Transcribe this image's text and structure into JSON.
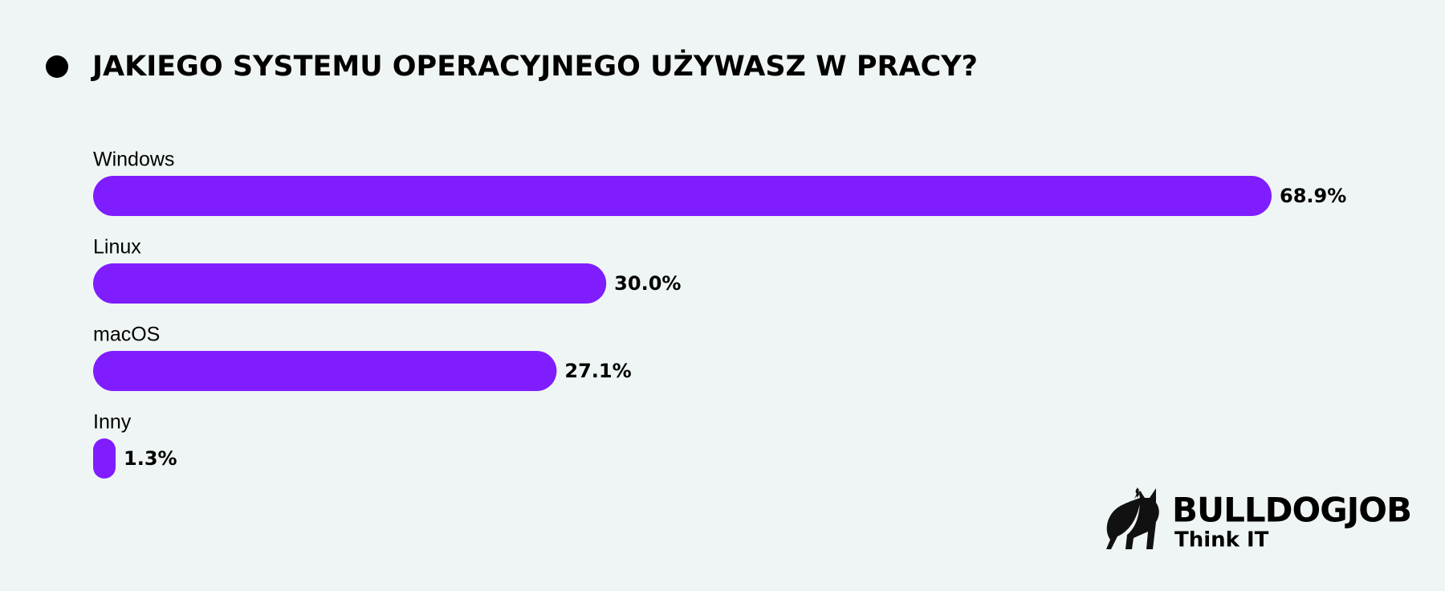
{
  "chart_data": {
    "type": "bar",
    "orientation": "horizontal",
    "title": "JAKIEGO SYSTEMU OPERACYJNEGO UŻYWASZ W PRACY?",
    "categories": [
      "Windows",
      "Linux",
      "macOS",
      "Inny"
    ],
    "values": [
      68.9,
      30.0,
      27.1,
      1.3
    ],
    "value_labels": [
      "68.9%",
      "30.0%",
      "27.1%",
      "1.3%"
    ],
    "color": "#7f1dff"
  },
  "brand": {
    "name": "BULLDOGJOB",
    "tagline": "Think IT"
  }
}
